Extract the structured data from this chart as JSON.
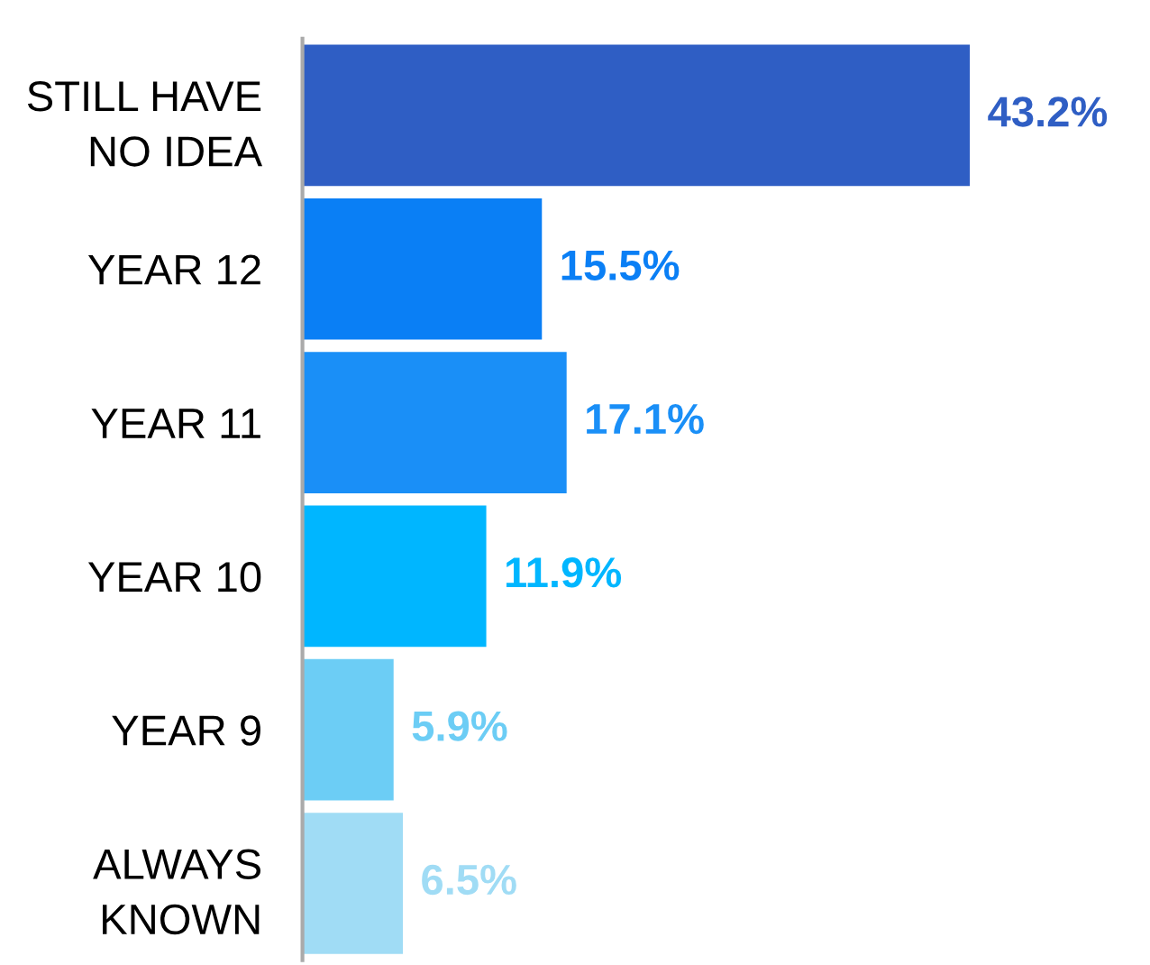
{
  "chart_data": {
    "type": "bar",
    "orientation": "horizontal",
    "categories": [
      "STILL HAVE\nNO IDEA",
      "YEAR 12",
      "YEAR 11",
      "YEAR 10",
      "YEAR 9",
      "ALWAYS\nKNOWN"
    ],
    "values": [
      43.2,
      15.5,
      17.1,
      11.9,
      5.9,
      6.5
    ],
    "value_labels": [
      "43.2%",
      "15.5%",
      "17.1%",
      "11.9%",
      "5.9%",
      "6.5%"
    ],
    "colors": [
      "#2f5ec4",
      "#0a7ff5",
      "#1a8ff7",
      "#00b6ff",
      "#6ccdf5",
      "#a0dcf5"
    ],
    "grid": false,
    "legend": false
  }
}
